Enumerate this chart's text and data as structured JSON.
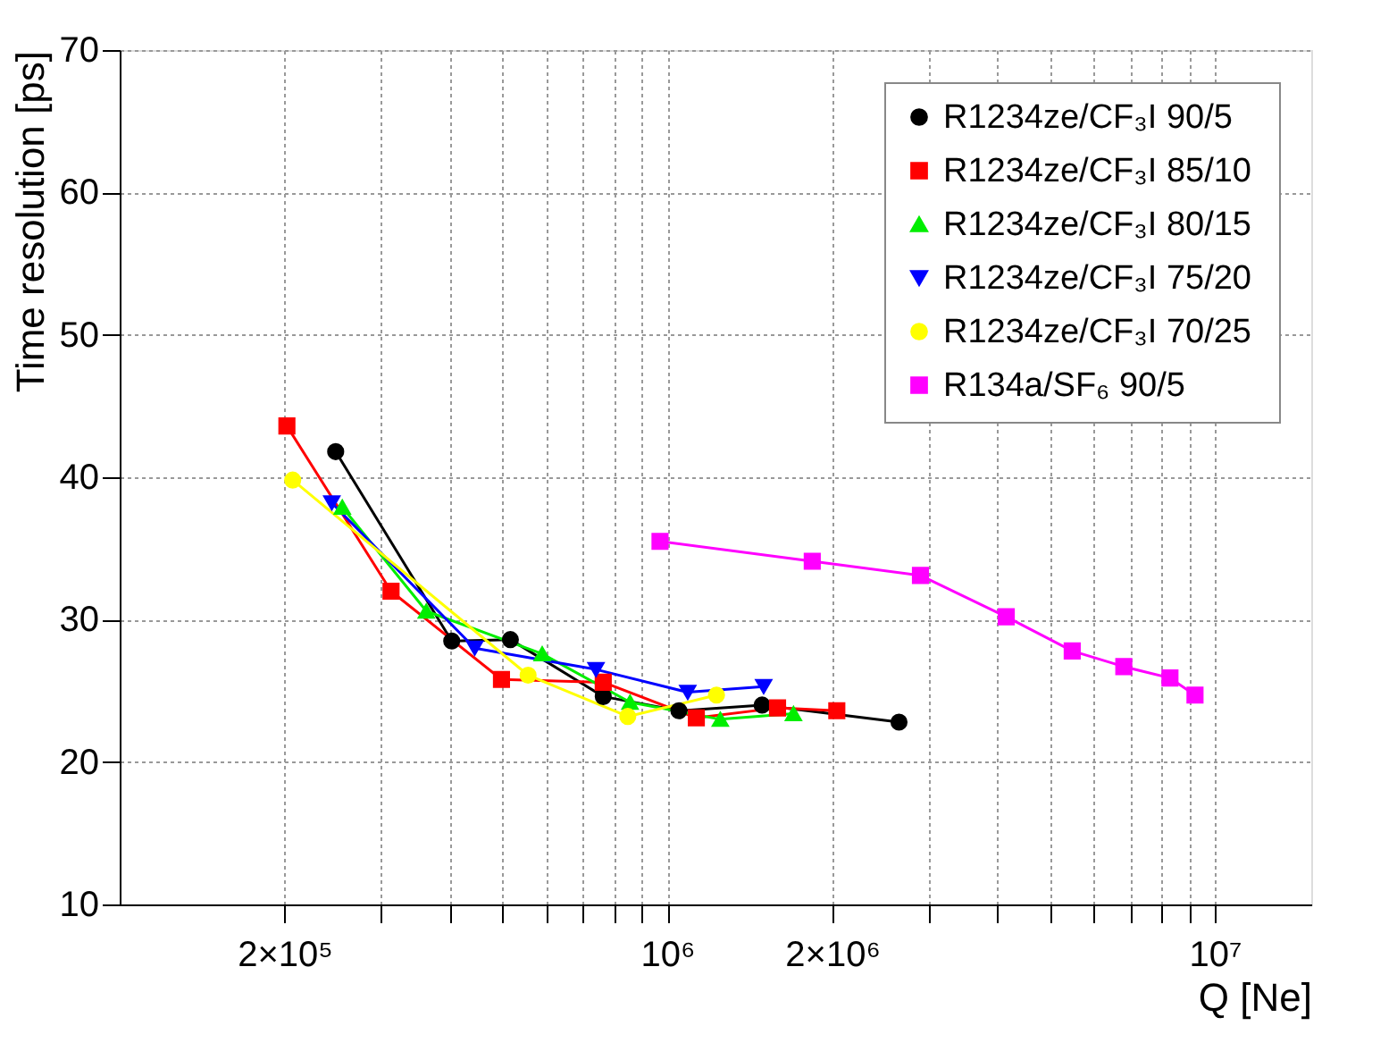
{
  "chart_data": {
    "type": "line",
    "xlabel": "Q [Ne]",
    "ylabel": "Time resolution [ps]",
    "log": "x",
    "xlim": [
      100000,
      15000000
    ],
    "ylim": [
      10,
      70
    ],
    "yticks": [
      10,
      20,
      30,
      40,
      50,
      60,
      70
    ],
    "xticks": [
      {
        "value": 200000,
        "label": "2×10⁵"
      },
      {
        "value": 300000,
        "label": null
      },
      {
        "value": 400000,
        "label": null
      },
      {
        "value": 500000,
        "label": null
      },
      {
        "value": 600000,
        "label": null
      },
      {
        "value": 700000,
        "label": null
      },
      {
        "value": 800000,
        "label": null
      },
      {
        "value": 900000,
        "label": null
      },
      {
        "value": 1000000,
        "label": "10⁶"
      },
      {
        "value": 2000000,
        "label": "2×10⁶"
      },
      {
        "value": 3000000,
        "label": null
      },
      {
        "value": 4000000,
        "label": null
      },
      {
        "value": 5000000,
        "label": null
      },
      {
        "value": 6000000,
        "label": null
      },
      {
        "value": 7000000,
        "label": null
      },
      {
        "value": 8000000,
        "label": null
      },
      {
        "value": 9000000,
        "label": null
      },
      {
        "value": 10000000,
        "label": "10⁷"
      }
    ],
    "grid": true,
    "legend": "top right",
    "line_style": "solid",
    "series": [
      {
        "name": "R1234ze/CF₃I  90/5",
        "color": "#000000",
        "marker": "circle",
        "x": [
          248000,
          404000,
          517000,
          764000,
          1050000,
          1490000,
          2650000
        ],
        "values": [
          41.8,
          28.5,
          28.6,
          24.6,
          23.6,
          24.0,
          22.8
        ]
      },
      {
        "name": "R1234ze/CF₃I  85/10",
        "color": "#ff0000",
        "marker": "square",
        "x": [
          202000,
          313000,
          498000,
          764000,
          1130000,
          1590000,
          2040000
        ],
        "values": [
          43.6,
          32.0,
          25.8,
          25.6,
          23.1,
          23.8,
          23.6
        ]
      },
      {
        "name": "R1234ze/CF₃I  80/15",
        "color": "#00ee00",
        "marker": "triangle",
        "x": [
          255000,
          363000,
          591000,
          855000,
          1250000,
          1700000
        ],
        "values": [
          37.9,
          30.6,
          27.6,
          24.2,
          23.0,
          23.4
        ]
      },
      {
        "name": "R1234ze/CF₃I  75/20",
        "color": "#0000ff",
        "marker": "triangle-down",
        "x": [
          244000,
          445000,
          741000,
          1090000,
          1500000
        ],
        "values": [
          38.2,
          28.0,
          26.5,
          24.9,
          25.3
        ]
      },
      {
        "name": "R1234ze/CF₃I  70/25",
        "color": "#ffff00",
        "marker": "circle",
        "x": [
          207000,
          557000,
          847000,
          1230000
        ],
        "values": [
          39.8,
          26.1,
          23.2,
          24.7
        ]
      },
      {
        "name": "R134a/SF₆  90/5",
        "color": "#ff00ff",
        "marker": "square",
        "x": [
          970000,
          1840000,
          2900000,
          4160000,
          5490000,
          6820000,
          8280000,
          9200000
        ],
        "values": [
          35.5,
          34.1,
          33.1,
          30.2,
          27.8,
          26.7,
          25.9,
          24.7
        ]
      }
    ]
  }
}
